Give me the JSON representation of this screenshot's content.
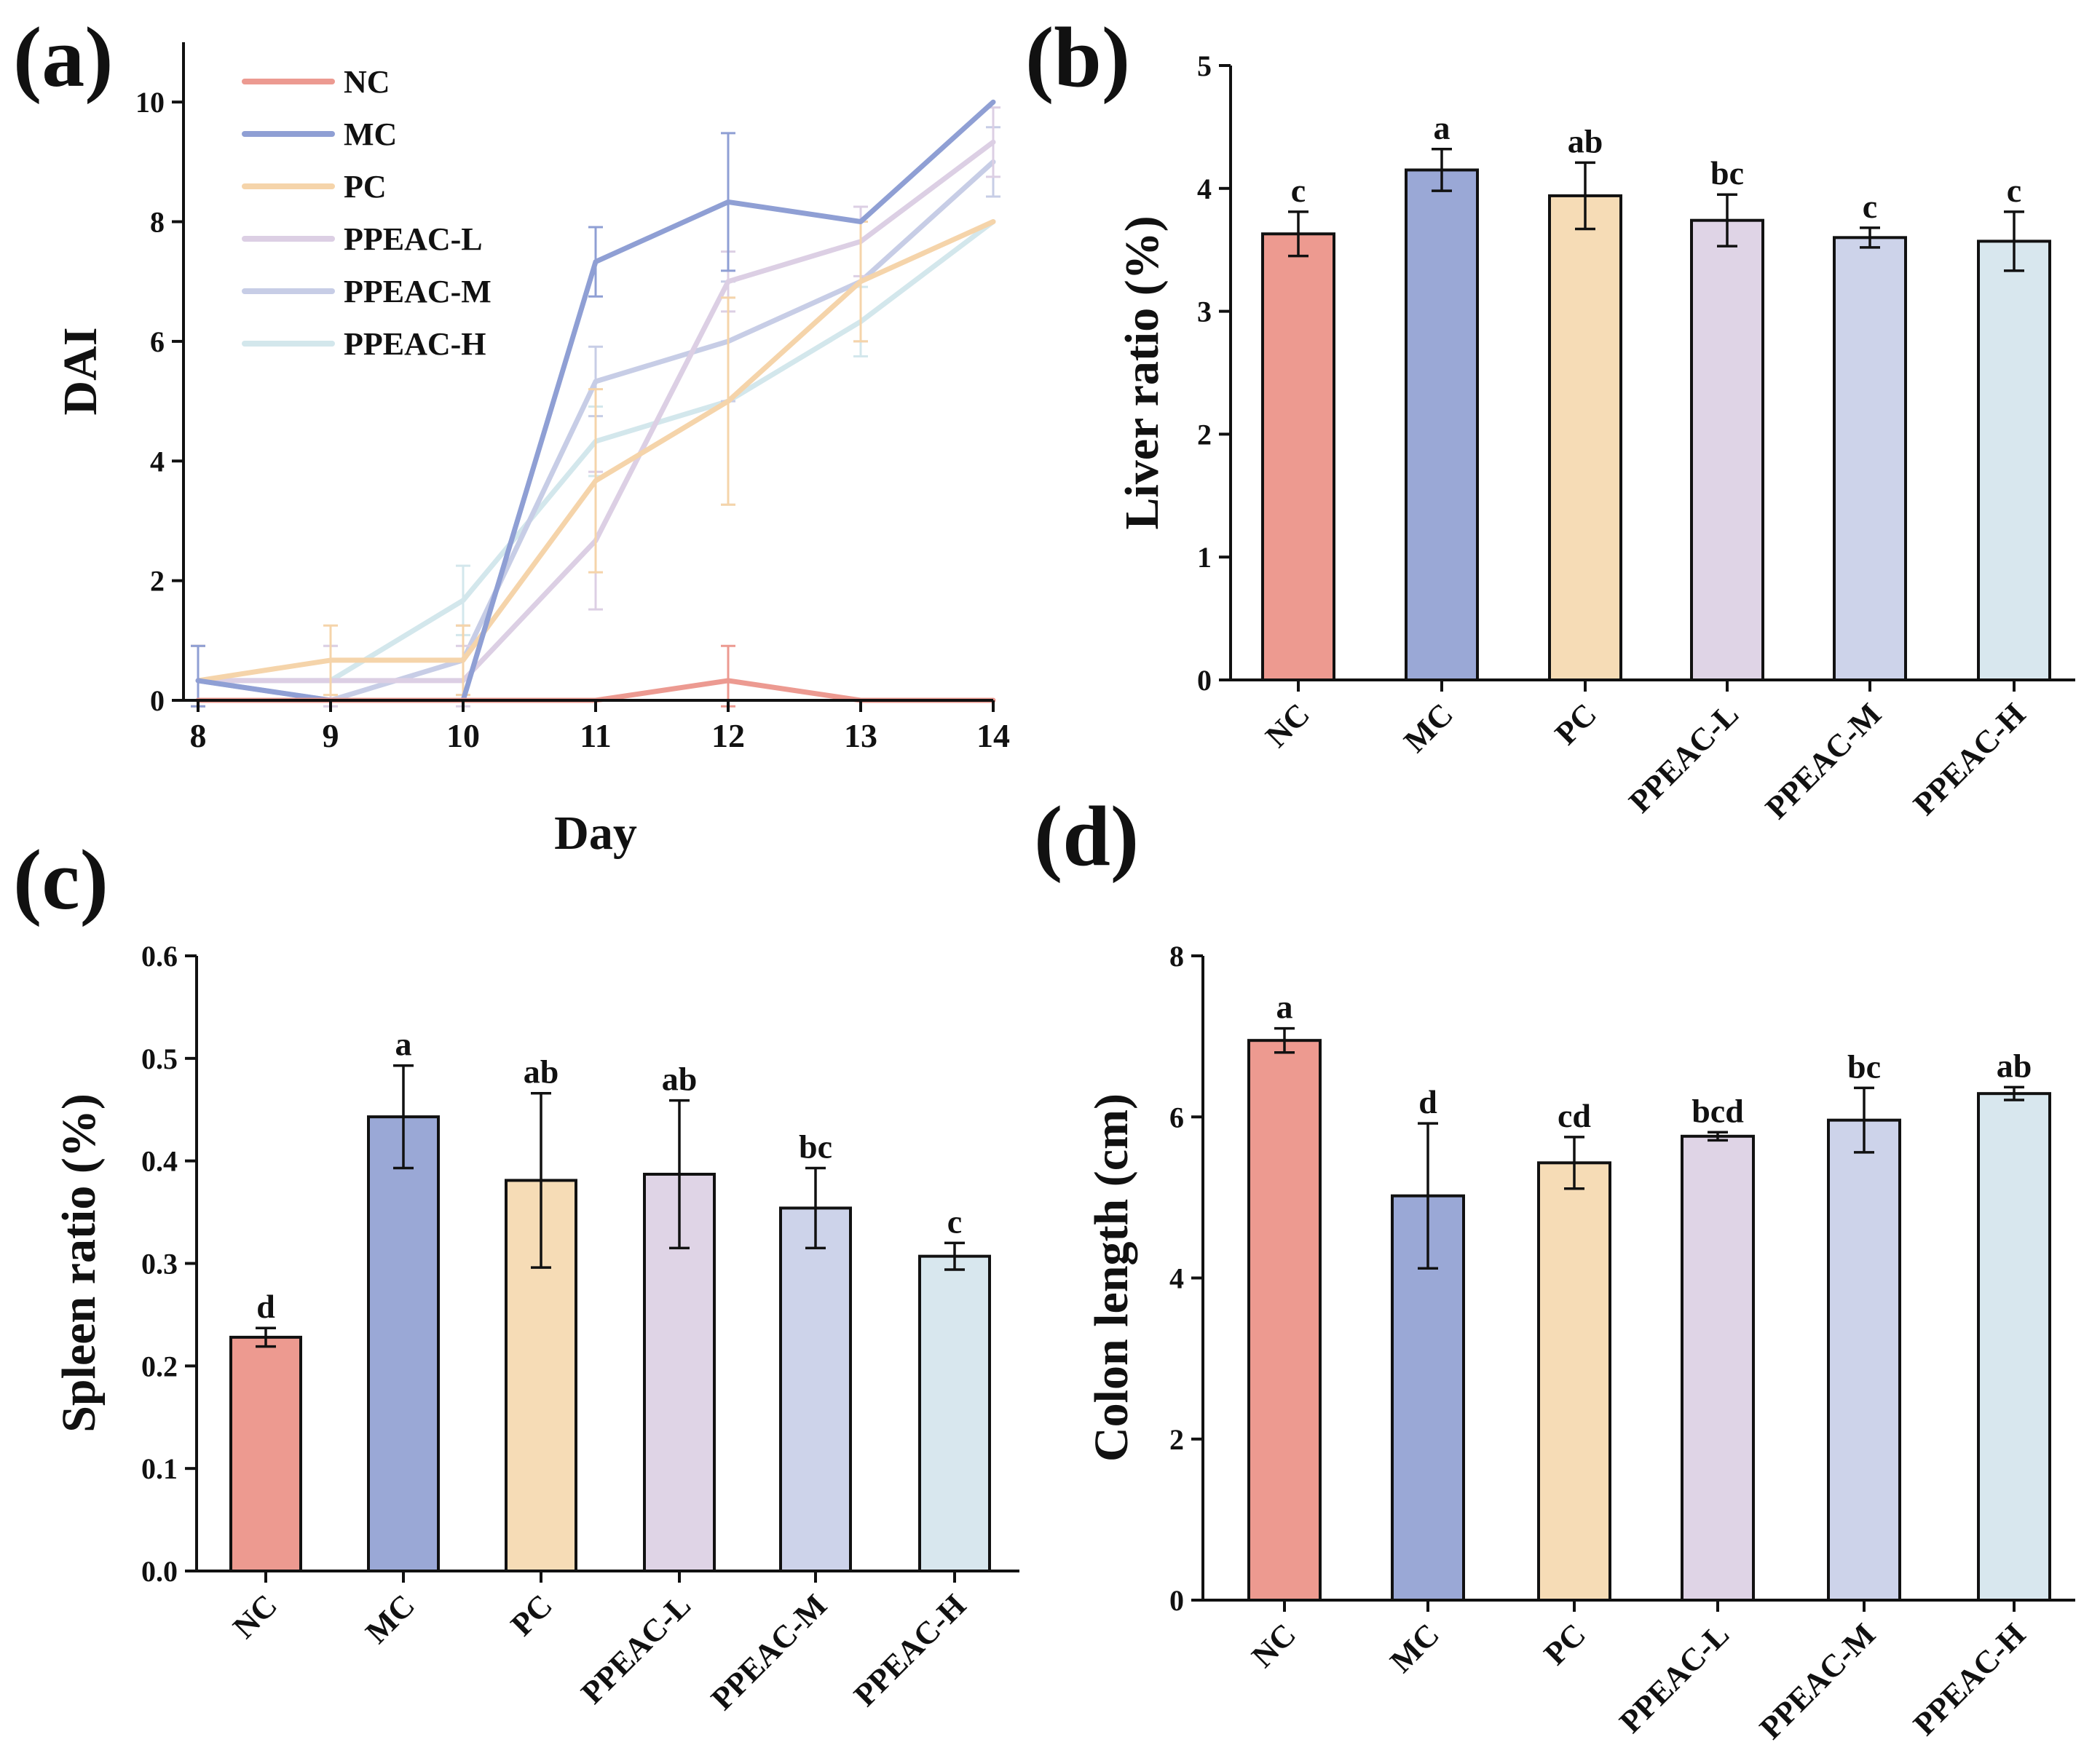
{
  "chart_data": [
    {
      "id": "a",
      "type": "line",
      "panel_label": "(a)",
      "title": "",
      "xlabel": "Day",
      "ylabel": "DAI",
      "x": [
        8,
        9,
        10,
        11,
        12,
        13,
        14
      ],
      "xlim": [
        8,
        14
      ],
      "ylim": [
        0,
        11
      ],
      "yticks": [
        0,
        2,
        4,
        6,
        8,
        10
      ],
      "grid": false,
      "legend_position": "top-left",
      "series": [
        {
          "name": "NC",
          "color": "#ec9a91",
          "values": [
            0,
            0,
            0,
            0,
            0.33,
            0,
            0
          ],
          "errors": [
            0,
            0,
            0,
            0,
            0.58,
            0,
            0
          ]
        },
        {
          "name": "MC",
          "color": "#8f9fd4",
          "values": [
            0.33,
            0,
            0,
            7.33,
            8.33,
            8,
            10
          ],
          "errors": [
            0.58,
            0,
            0,
            0.58,
            1.15,
            0,
            0
          ]
        },
        {
          "name": "PC",
          "color": "#f5d4aa",
          "values": [
            0.33,
            0.67,
            0.67,
            3.67,
            5,
            7,
            8
          ],
          "errors": [
            0.58,
            0.58,
            0.58,
            1.53,
            1.73,
            1,
            0
          ]
        },
        {
          "name": "PPEAC-L",
          "color": "#dccfe4",
          "values": [
            0.33,
            0.33,
            0.33,
            2.67,
            7,
            7.67,
            9.33
          ],
          "errors": [
            0.58,
            0.58,
            0.58,
            1.15,
            0.5,
            0.58,
            0.58
          ]
        },
        {
          "name": "PPEAC-M",
          "color": "#c7cde6",
          "values": [
            0.33,
            0,
            0.67,
            5.33,
            6,
            7,
            9
          ],
          "errors": [
            0.58,
            0,
            0.58,
            0.58,
            1,
            1,
            0.58
          ]
        },
        {
          "name": "PPEAC-H",
          "color": "#d3e7ec",
          "values": [
            0.33,
            0.33,
            1.67,
            4.33,
            5,
            6.33,
            8
          ],
          "errors": [
            0.58,
            0.58,
            0.58,
            0.58,
            1.73,
            0.58,
            0
          ]
        }
      ]
    },
    {
      "id": "b",
      "type": "bar",
      "panel_label": "(b)",
      "title": "",
      "xlabel": "",
      "ylabel": "Liver ratio (%)",
      "categories": [
        "NC",
        "MC",
        "PC",
        "PPEAC-L",
        "PPEAC-M",
        "PPEAC-H"
      ],
      "values": [
        3.63,
        4.15,
        3.94,
        3.74,
        3.6,
        3.57
      ],
      "errors": [
        0.18,
        0.17,
        0.27,
        0.21,
        0.08,
        0.24
      ],
      "significance": [
        "c",
        "a",
        "ab",
        "bc",
        "c",
        "c"
      ],
      "colors": [
        "#ed9a90",
        "#9aa8d6",
        "#f6dcb6",
        "#dfd4e6",
        "#cdd3ea",
        "#d8e7ee"
      ],
      "ylim": [
        0,
        5
      ],
      "yticks": [
        0,
        1,
        2,
        3,
        4,
        5
      ],
      "ytick_labels": [
        "0",
        "1",
        "2",
        "3",
        "4",
        "5"
      ],
      "grid": false
    },
    {
      "id": "c",
      "type": "bar",
      "panel_label": "(c)",
      "title": "",
      "xlabel": "",
      "ylabel": "Spleen ratio (%)",
      "categories": [
        "NC",
        "MC",
        "PC",
        "PPEAC-L",
        "PPEAC-M",
        "PPEAC-H"
      ],
      "values": [
        0.228,
        0.443,
        0.381,
        0.387,
        0.354,
        0.307
      ],
      "errors": [
        0.009,
        0.05,
        0.085,
        0.072,
        0.039,
        0.013
      ],
      "significance": [
        "d",
        "a",
        "ab",
        "ab",
        "bc",
        "c"
      ],
      "colors": [
        "#ed9a90",
        "#9aa8d6",
        "#f6dcb6",
        "#dfd4e6",
        "#cdd3ea",
        "#d8e7ee"
      ],
      "ylim": [
        0,
        0.6
      ],
      "yticks": [
        0,
        0.1,
        0.2,
        0.3,
        0.4,
        0.5,
        0.6
      ],
      "ytick_labels": [
        "0.0",
        "0.1",
        "0.2",
        "0.3",
        "0.4",
        "0.5",
        "0.6"
      ],
      "grid": false
    },
    {
      "id": "d",
      "type": "bar",
      "panel_label": "(d)",
      "title": "",
      "xlabel": "",
      "ylabel": "Colon length (cm)",
      "categories": [
        "NC",
        "MC",
        "PC",
        "PPEAC-L",
        "PPEAC-M",
        "PPEAC-H"
      ],
      "values": [
        6.95,
        5.02,
        5.43,
        5.76,
        5.96,
        6.29
      ],
      "errors": [
        0.15,
        0.9,
        0.32,
        0.05,
        0.4,
        0.08
      ],
      "significance": [
        "a",
        "d",
        "cd",
        "bcd",
        "bc",
        "ab"
      ],
      "colors": [
        "#ed9a90",
        "#9aa8d6",
        "#f6dcb6",
        "#dfd4e6",
        "#cdd3ea",
        "#d8e7ee"
      ],
      "ylim": [
        0,
        8
      ],
      "yticks": [
        0,
        2,
        4,
        6,
        8
      ],
      "ytick_labels": [
        "0",
        "2",
        "4",
        "6",
        "8"
      ],
      "grid": false
    }
  ]
}
